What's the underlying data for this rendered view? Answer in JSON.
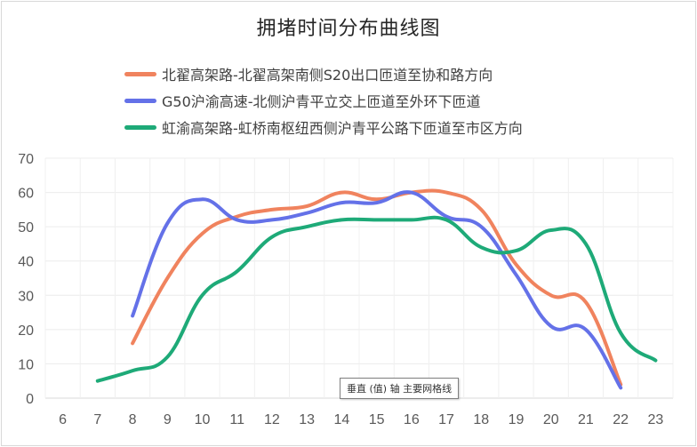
{
  "chart_data": {
    "type": "line",
    "title": "拥堵时间分布曲线图",
    "x": [
      6,
      7,
      8,
      9,
      10,
      11,
      12,
      13,
      14,
      15,
      16,
      17,
      18,
      19,
      20,
      21,
      22,
      23
    ],
    "ylim": [
      0,
      70
    ],
    "yticks": [
      0,
      10,
      20,
      30,
      40,
      50,
      60,
      70
    ],
    "grid": true,
    "legend_position": "top",
    "series": [
      {
        "name": "北翟高架路-北翟高架南侧S20出口匝道至协和路方向",
        "color": "#F0835E",
        "points": [
          [
            8,
            16
          ],
          [
            9,
            35
          ],
          [
            10,
            48
          ],
          [
            11,
            53
          ],
          [
            12,
            55
          ],
          [
            13,
            56
          ],
          [
            14,
            60
          ],
          [
            15,
            58
          ],
          [
            16,
            60
          ],
          [
            17,
            60
          ],
          [
            18,
            55
          ],
          [
            19,
            39
          ],
          [
            20,
            30
          ],
          [
            21,
            28
          ],
          [
            22,
            4
          ]
        ]
      },
      {
        "name": "G50沪渝高速-北侧沪青平立交上匝道至外环下匝道",
        "color": "#6471E8",
        "points": [
          [
            8,
            24
          ],
          [
            9,
            51
          ],
          [
            10,
            58
          ],
          [
            11,
            52
          ],
          [
            12,
            52
          ],
          [
            13,
            54
          ],
          [
            14,
            57
          ],
          [
            15,
            57
          ],
          [
            16,
            60
          ],
          [
            17,
            53
          ],
          [
            18,
            50
          ],
          [
            19,
            36
          ],
          [
            20,
            21
          ],
          [
            21,
            20
          ],
          [
            22,
            3
          ]
        ]
      },
      {
        "name": "虹渝高架路-虹桥南枢纽西侧沪青平公路下匝道至市区方向",
        "color": "#1EAA78",
        "points": [
          [
            7,
            5
          ],
          [
            8,
            8
          ],
          [
            9,
            12
          ],
          [
            10,
            30
          ],
          [
            11,
            37
          ],
          [
            12,
            47
          ],
          [
            13,
            50
          ],
          [
            14,
            52
          ],
          [
            15,
            52
          ],
          [
            16,
            52
          ],
          [
            17,
            52
          ],
          [
            18,
            44
          ],
          [
            19,
            43
          ],
          [
            20,
            49
          ],
          [
            21,
            45
          ],
          [
            22,
            19
          ],
          [
            23,
            11
          ]
        ]
      }
    ],
    "annotation": "垂直 (值) 轴 主要网格线"
  }
}
